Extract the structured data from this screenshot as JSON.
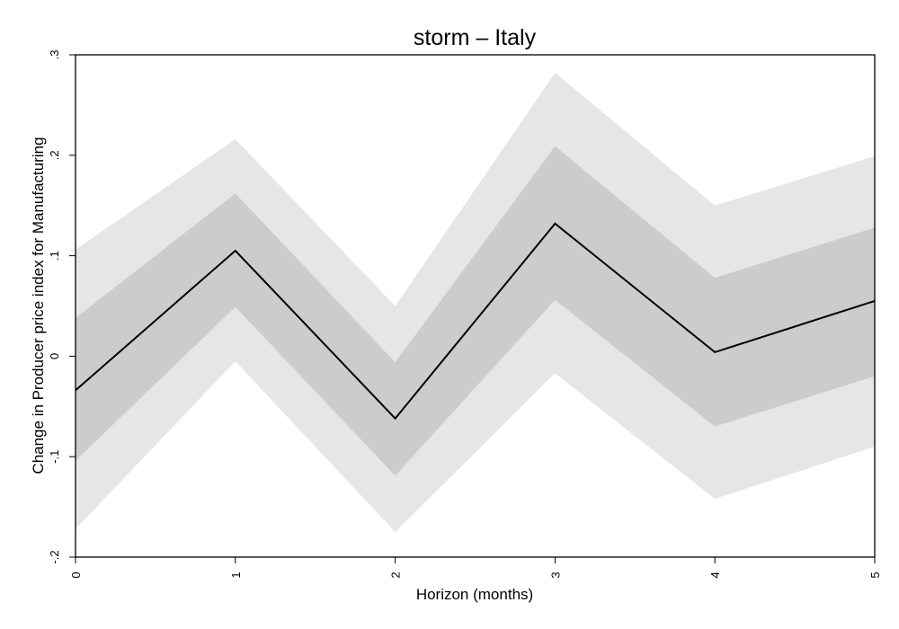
{
  "chart_data": {
    "type": "line",
    "title": "storm – Italy",
    "xlabel": "Horizon (months)",
    "ylabel": "Change in Producer price index for Manufacturing",
    "x": [
      0,
      1,
      2,
      3,
      4,
      5
    ],
    "xlim": [
      0,
      5
    ],
    "ylim": [
      -0.2,
      0.3
    ],
    "x_ticks": [
      0,
      1,
      2,
      3,
      4,
      5
    ],
    "x_tick_labels": [
      "0",
      "1",
      "2",
      "3",
      "4",
      "5"
    ],
    "y_ticks": [
      -0.2,
      -0.1,
      0,
      0.1,
      0.2,
      0.3
    ],
    "y_tick_labels": [
      "-.2",
      "-.1",
      "0",
      ".1",
      ".2",
      ".3"
    ],
    "grid": false,
    "legend": "none",
    "series": [
      {
        "values": [
          -0.034,
          0.105,
          -0.062,
          0.132,
          0.004,
          0.055
        ],
        "color": "#000000"
      }
    ],
    "bands": [
      {
        "level": "outer",
        "lower": [
          -0.172,
          -0.005,
          -0.175,
          -0.017,
          -0.142,
          -0.09
        ],
        "upper": [
          0.106,
          0.216,
          0.05,
          0.282,
          0.15,
          0.199
        ],
        "color": "#e6e6e6"
      },
      {
        "level": "inner",
        "lower": [
          -0.104,
          0.049,
          -0.119,
          0.056,
          -0.07,
          -0.02
        ],
        "upper": [
          0.038,
          0.162,
          -0.006,
          0.209,
          0.078,
          0.128
        ],
        "color": "#cccccc"
      }
    ]
  }
}
